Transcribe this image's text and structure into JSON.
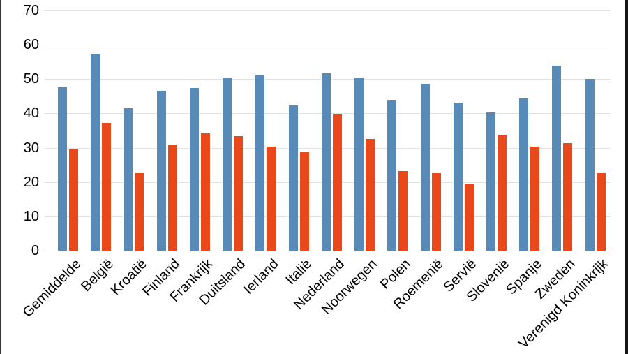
{
  "chart_data": {
    "type": "bar",
    "title": "",
    "xlabel": "",
    "ylabel": "",
    "categories": [
      "Gemiddelde",
      "België",
      "Kroatië",
      "Finland",
      "Frankrijk",
      "Duitsland",
      "Ierland",
      "Italië",
      "Nederland",
      "Noorwegen",
      "Polen",
      "Roemenië",
      "Servië",
      "Slovenië",
      "Spanje",
      "Zweden",
      "Verenigd Koninkrijk"
    ],
    "series": [
      {
        "name": "blue",
        "color": "#578AB6",
        "values": [
          47.6,
          57.2,
          41.5,
          46.5,
          47.4,
          50.5,
          51.2,
          42.4,
          51.6,
          50.4,
          43.9,
          48.7,
          43.1,
          40.2,
          44.3,
          53.9,
          50.0
        ]
      },
      {
        "name": "orange",
        "color": "#E8481A",
        "values": [
          29.5,
          37.2,
          22.5,
          31.0,
          34.1,
          33.3,
          30.4,
          28.7,
          39.9,
          32.6,
          23.1,
          22.6,
          19.3,
          33.8,
          30.3,
          31.4,
          22.6
        ]
      }
    ],
    "ylim": [
      0,
      70
    ],
    "yticks": [
      0,
      10,
      20,
      30,
      40,
      50,
      60,
      70
    ],
    "grid": true,
    "legend": false,
    "gridline_color": "#E2E2E2",
    "axis_line_color": "#C4C4C4",
    "tick_label_color": "#000000",
    "background": "#FFFFFF"
  },
  "frame": {
    "left_edge_color": "#3A3A3A",
    "right_edge_color": "#151515"
  }
}
